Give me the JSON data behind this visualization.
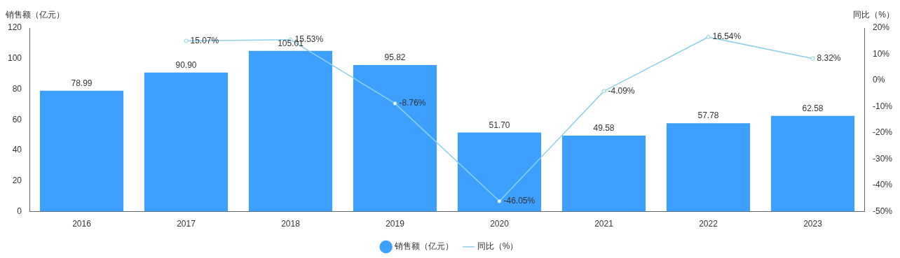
{
  "chart_data": {
    "type": "bar",
    "ylabel": "销售额（亿元）",
    "y2label": "同比（%）",
    "categories": [
      "2016",
      "2017",
      "2018",
      "2019",
      "2020",
      "2021",
      "2022",
      "2023"
    ],
    "series": [
      {
        "name": "销售额（亿元）",
        "color": "#3ea0fe",
        "values": [
          78.99,
          90.9,
          105.01,
          95.82,
          51.7,
          49.58,
          57.78,
          62.58
        ],
        "value_labels": [
          "78.99",
          "90.90",
          "105.01",
          "95.82",
          "51.70",
          "49.58",
          "57.78",
          "62.58"
        ]
      },
      {
        "name": "同比（%）",
        "type": "line",
        "axis": "y2",
        "color": "#8cd1ec",
        "marker": "circle",
        "values": [
          null,
          15.07,
          15.53,
          -8.76,
          -46.05,
          -4.09,
          16.54,
          8.32
        ],
        "value_labels": [
          null,
          "15.07%",
          "15.53%",
          "-8.76%",
          "-46.05%",
          "-4.09%",
          "16.54%",
          "8.32%"
        ]
      }
    ],
    "ylim": [
      0,
      120
    ],
    "yticks": [
      0,
      20,
      40,
      60,
      80,
      100,
      120
    ],
    "y2lim": [
      -50,
      20
    ],
    "y2ticks": [
      {
        "value": -50,
        "label": "-50%"
      },
      {
        "value": -40,
        "label": "-40%"
      },
      {
        "value": -30,
        "label": "-30%"
      },
      {
        "value": -20,
        "label": "-20%"
      },
      {
        "value": -10,
        "label": "-10%"
      },
      {
        "value": 0,
        "label": "0%"
      },
      {
        "value": 10,
        "label": "10%"
      },
      {
        "value": 20,
        "label": "20%"
      }
    ],
    "grid": false,
    "legend": "bottom"
  }
}
